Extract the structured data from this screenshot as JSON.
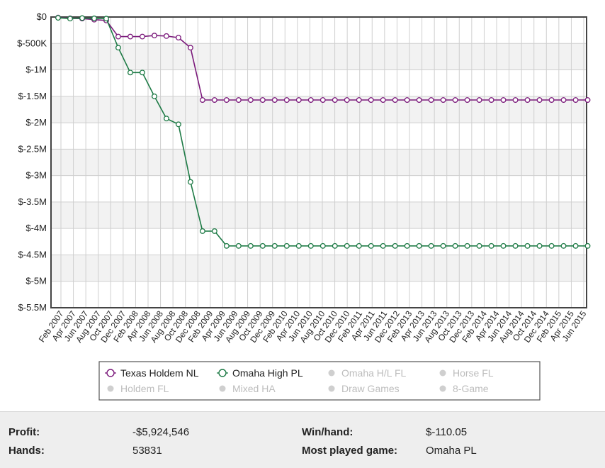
{
  "chart_data": {
    "type": "line",
    "title": "",
    "xlabel": "",
    "ylabel": "",
    "ylim": [
      -5500000,
      0
    ],
    "grid": true,
    "legend_placement": "bottom-center",
    "y_ticks": [
      {
        "value": 0,
        "label": "$0"
      },
      {
        "value": -500000,
        "label": "$-500K"
      },
      {
        "value": -1000000,
        "label": "$-1M"
      },
      {
        "value": -1500000,
        "label": "$-1.5M"
      },
      {
        "value": -2000000,
        "label": "$-2M"
      },
      {
        "value": -2500000,
        "label": "$-2.5M"
      },
      {
        "value": -3000000,
        "label": "$-3M"
      },
      {
        "value": -3500000,
        "label": "$-3.5M"
      },
      {
        "value": -4000000,
        "label": "$-4M"
      },
      {
        "value": -4500000,
        "label": "$-4.5M"
      },
      {
        "value": -5000000,
        "label": "$-5M"
      },
      {
        "value": -5500000,
        "label": "$-5.5M"
      }
    ],
    "x_tick_labels": [
      "Feb 2007",
      "Apr 2007",
      "Jun 2007",
      "Aug 2007",
      "Oct 2007",
      "Dec 2007",
      "Feb 2008",
      "Apr 2008",
      "Jun 2008",
      "Aug 2008",
      "Oct 2008",
      "Dec 2008",
      "Feb 2009",
      "Apr 2009",
      "Jun 2009",
      "Aug 2009",
      "Oct 2009",
      "Dec 2009",
      "Feb 2010",
      "Apr 2010",
      "Jun 2010",
      "Aug 2010",
      "Oct 2010",
      "Dec 2010",
      "Feb 2011",
      "Apr 2011",
      "Jun 2011",
      "Dec 2012",
      "Feb 2013",
      "Apr 2013",
      "Jun 2013",
      "Aug 2013",
      "Oct 2013",
      "Dec 2013",
      "Feb 2014",
      "Apr 2014",
      "Jun 2014",
      "Aug 2014",
      "Oct 2014",
      "Dec 2014",
      "Feb 2015",
      "Apr 2015",
      "Jun 2015"
    ],
    "series": [
      {
        "name": "Texas Holdem NL",
        "color": "#7b1a7b",
        "values": [
          -10000,
          -25000,
          -30000,
          -50000,
          -65000,
          -370000,
          -370000,
          -370000,
          -350000,
          -360000,
          -390000,
          -580000,
          -1570000,
          -1570000,
          -1570000,
          -1570000,
          -1570000,
          -1570000,
          -1570000,
          -1570000,
          -1570000,
          -1570000,
          -1570000,
          -1570000,
          -1570000,
          -1570000,
          -1570000,
          -1570000,
          -1570000,
          -1570000,
          -1570000,
          -1570000,
          -1570000,
          -1570000,
          -1570000,
          -1570000,
          -1570000,
          -1570000,
          -1570000,
          -1570000,
          -1570000,
          -1570000,
          -1570000,
          -1570000,
          -1570000
        ]
      },
      {
        "name": "Omaha High PL",
        "color": "#1d7a45",
        "values": [
          -15000,
          -30000,
          -20000,
          -25000,
          -30000,
          -580000,
          -1050000,
          -1050000,
          -1500000,
          -1920000,
          -2030000,
          -3120000,
          -4050000,
          -4050000,
          -4330000,
          -4330000,
          -4330000,
          -4330000,
          -4330000,
          -4330000,
          -4330000,
          -4330000,
          -4330000,
          -4330000,
          -4330000,
          -4330000,
          -4330000,
          -4330000,
          -4330000,
          -4330000,
          -4330000,
          -4330000,
          -4330000,
          -4330000,
          -4330000,
          -4330000,
          -4330000,
          -4330000,
          -4330000,
          -4330000,
          -4330000,
          -4330000,
          -4330000,
          -4330000,
          -4330000
        ]
      }
    ]
  },
  "legend": {
    "items": [
      {
        "label": "Texas Holdem NL",
        "active": true,
        "color": "#7b1a7b"
      },
      {
        "label": "Omaha High PL",
        "active": true,
        "color": "#1d7a45"
      },
      {
        "label": "Omaha H/L FL",
        "active": false,
        "color": "#bdbdbd"
      },
      {
        "label": "Horse FL",
        "active": false,
        "color": "#bdbdbd"
      },
      {
        "label": "Holdem FL",
        "active": false,
        "color": "#bdbdbd"
      },
      {
        "label": "Mixed HA",
        "active": false,
        "color": "#bdbdbd"
      },
      {
        "label": "Draw Games",
        "active": false,
        "color": "#bdbdbd"
      },
      {
        "label": "8-Game",
        "active": false,
        "color": "#bdbdbd"
      }
    ]
  },
  "stats": {
    "profit_label": "Profit:",
    "profit_value": "-$5,924,546",
    "hands_label": "Hands:",
    "hands_value": "53831",
    "winhand_label": "Win/hand:",
    "winhand_value": "$-110.05",
    "most_played_label": "Most played game:",
    "most_played_value": "Omaha PL"
  }
}
